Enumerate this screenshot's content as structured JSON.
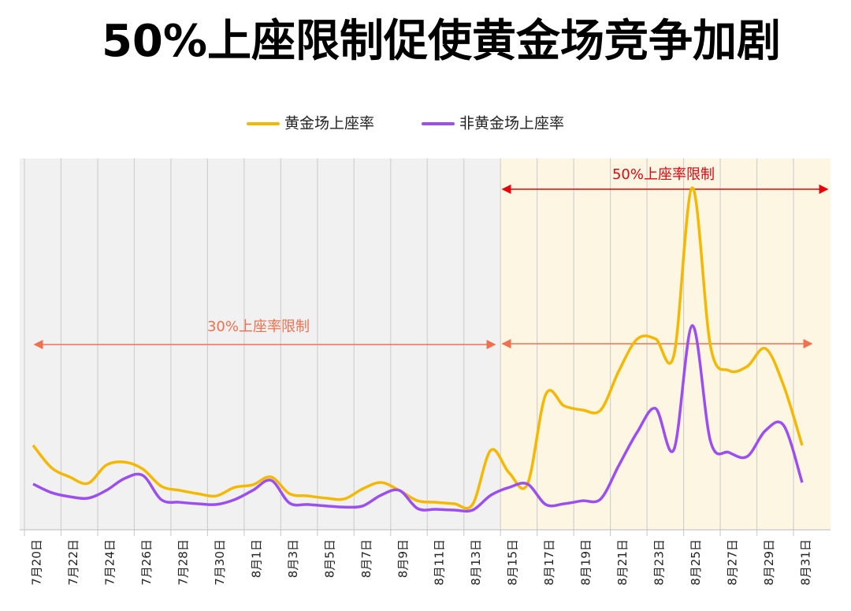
{
  "chart_data": {
    "type": "line",
    "title": "50%上座限制促使黄金场竞争加剧",
    "annotations": [
      "30%上座率限制",
      "50%上座率限制"
    ],
    "categories": [
      "7月20日",
      null,
      "7月22日",
      null,
      "7月24日",
      null,
      "7月26日",
      null,
      "7月28日",
      null,
      "7月30日",
      null,
      "8月1日",
      null,
      "8月3日",
      null,
      "8月5日",
      null,
      "8月7日",
      null,
      "8月9日",
      null,
      "8月11日",
      null,
      "8月13日",
      null,
      "8月15日",
      null,
      "8月17日",
      null,
      "8月19日",
      null,
      "8月21日",
      null,
      "8月23日",
      null,
      "8月25日",
      null,
      "8月27日",
      null,
      "8月29日",
      null,
      "8月31日"
    ],
    "series": [
      {
        "name": "黄金场上座率",
        "color": "#f5b800",
        "values": [
          22.7,
          16.7,
          14.2,
          12.5,
          17.4,
          18.2,
          16.3,
          11.7,
          10.6,
          9.7,
          9.1,
          11.4,
          12.1,
          14.2,
          9.7,
          9.1,
          8.5,
          8.3,
          11.0,
          12.7,
          10.6,
          7.8,
          7.4,
          7.0,
          6.8,
          21.4,
          15.3,
          12.3,
          36.4,
          33.3,
          32.2,
          32.2,
          42.8,
          51.3,
          51.3,
          47.0,
          91.9,
          49.2,
          42.8,
          43.9,
          48.7,
          38.6,
          22.7
        ]
      },
      {
        "name": "非黄金场上座率",
        "color": "#9b4ff0",
        "values": [
          12.3,
          10.0,
          8.9,
          8.5,
          10.6,
          13.8,
          14.6,
          8.1,
          7.4,
          7.0,
          6.8,
          8.1,
          10.6,
          13.3,
          7.2,
          6.8,
          6.4,
          6.1,
          6.4,
          9.3,
          10.6,
          5.7,
          5.5,
          5.3,
          5.3,
          9.3,
          11.4,
          12.3,
          6.8,
          7.0,
          7.8,
          8.3,
          17.4,
          26.3,
          32.6,
          21.6,
          54.9,
          23.7,
          20.8,
          19.7,
          26.7,
          28.0,
          12.7
        ]
      }
    ]
  }
}
